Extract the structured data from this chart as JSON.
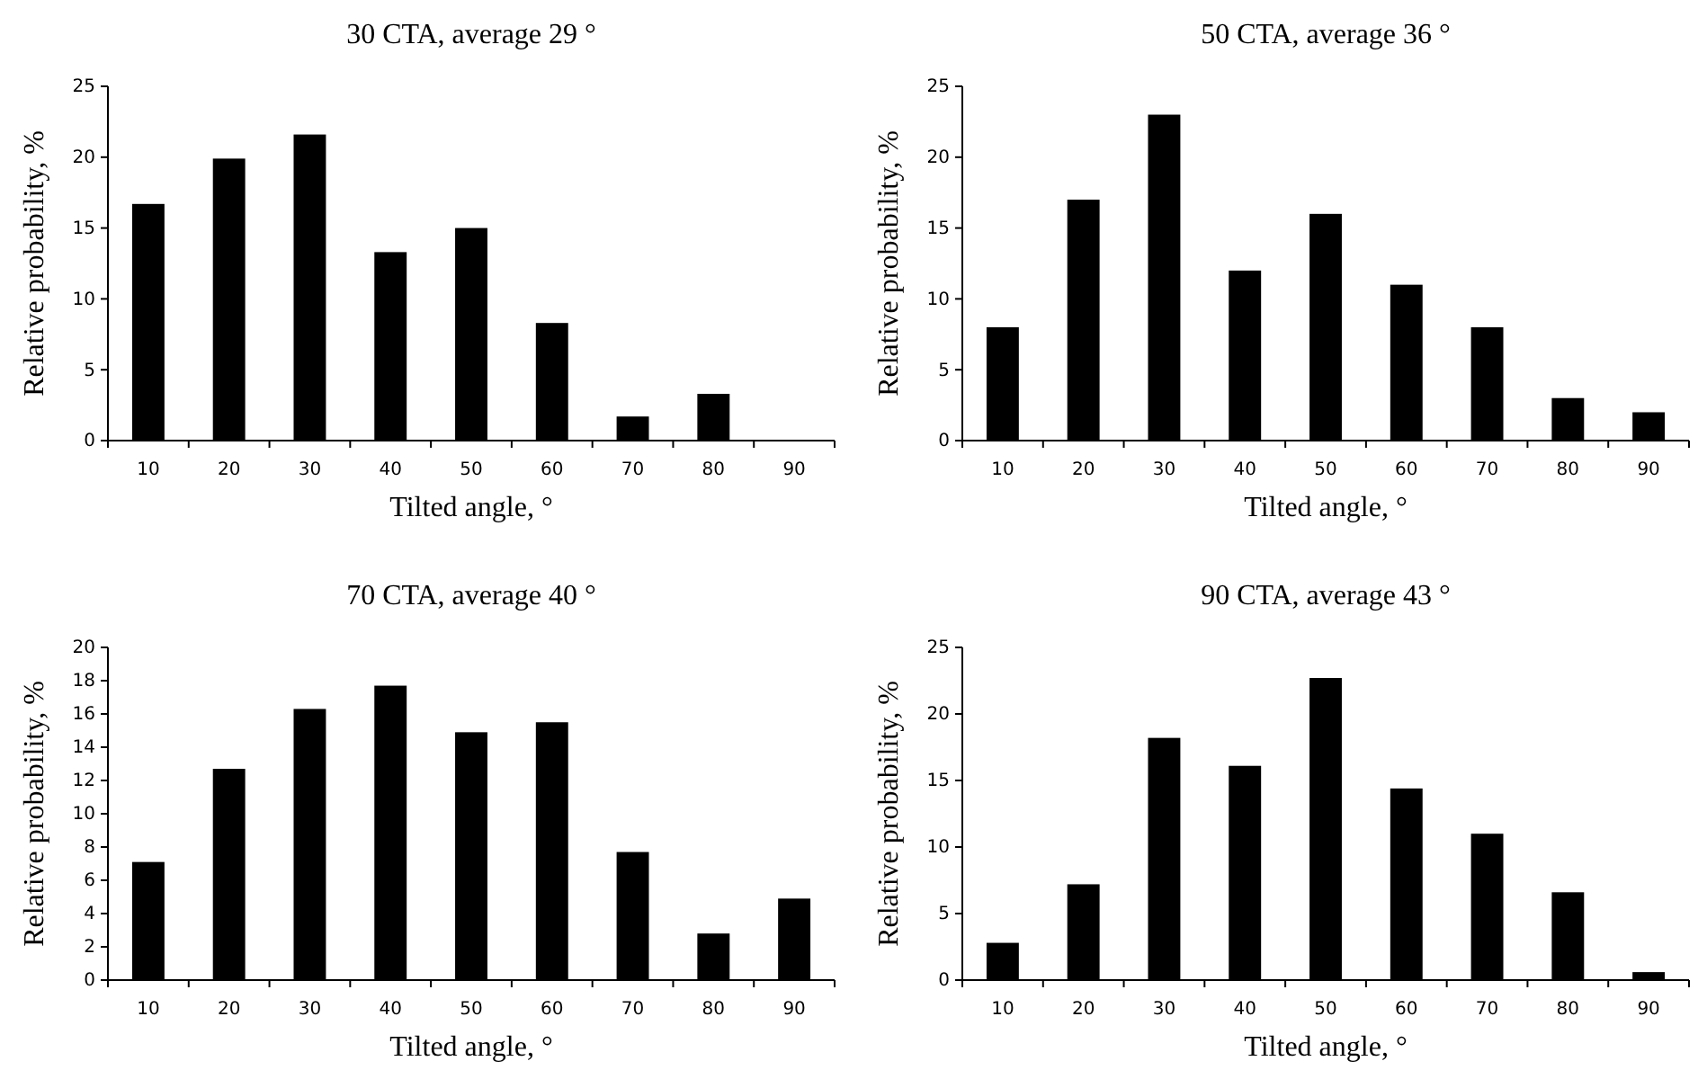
{
  "chart_data": [
    {
      "type": "bar",
      "title": "30 CTA, average 29 °",
      "xlabel": "Tilted angle, °",
      "ylabel": "Relative probability, %",
      "categories": [
        "10",
        "20",
        "30",
        "40",
        "50",
        "60",
        "70",
        "80",
        "90"
      ],
      "values": [
        16.7,
        19.9,
        21.6,
        13.3,
        15,
        8.3,
        1.7,
        3.3,
        0
      ],
      "color": "#000000",
      "ylim": [
        0,
        25
      ],
      "yticks": [
        0,
        5,
        10,
        15,
        20,
        25
      ],
      "grid": false
    },
    {
      "type": "bar",
      "title": "50 CTA, average 36 °",
      "xlabel": "Tilted angle, °",
      "ylabel": "Relative probability, %",
      "categories": [
        "10",
        "20",
        "30",
        "40",
        "50",
        "60",
        "70",
        "80",
        "90"
      ],
      "values": [
        8,
        17,
        23,
        12,
        16,
        11,
        8,
        3,
        2
      ],
      "color": "#000000",
      "ylim": [
        0,
        25
      ],
      "yticks": [
        0,
        5,
        10,
        15,
        20,
        25
      ],
      "grid": false
    },
    {
      "type": "bar",
      "title": "70 CTA, average 40 °",
      "xlabel": "Tilted angle, °",
      "ylabel": "Relative probability, %",
      "categories": [
        "10",
        "20",
        "30",
        "40",
        "50",
        "60",
        "70",
        "80",
        "90"
      ],
      "values": [
        7.1,
        12.7,
        16.3,
        17.7,
        14.9,
        15.5,
        7.7,
        2.8,
        4.9
      ],
      "color": "#000000",
      "ylim": [
        0,
        20
      ],
      "yticks": [
        0,
        2,
        4,
        6,
        8,
        10,
        12,
        14,
        16,
        18,
        20
      ],
      "grid": false
    },
    {
      "type": "bar",
      "title": "90 CTA, average 43 °",
      "xlabel": "Tilted angle, °",
      "ylabel": "Relative probability, %",
      "categories": [
        "10",
        "20",
        "30",
        "40",
        "50",
        "60",
        "70",
        "80",
        "90"
      ],
      "values": [
        2.8,
        7.2,
        18.2,
        16.1,
        22.7,
        14.4,
        11,
        6.6,
        0.6
      ],
      "color": "#000000",
      "ylim": [
        0,
        25
      ],
      "yticks": [
        0,
        5,
        10,
        15,
        20,
        25
      ],
      "grid": false
    }
  ]
}
